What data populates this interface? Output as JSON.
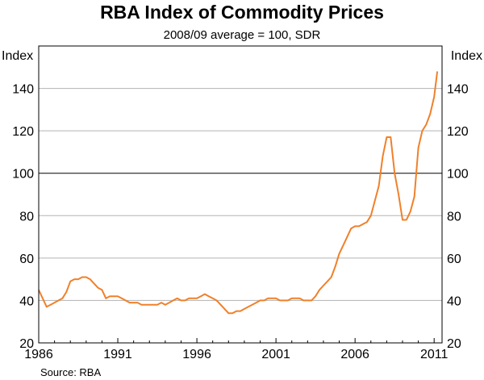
{
  "chart_data": {
    "type": "line",
    "title": "RBA Index of Commodity Prices",
    "subtitle": "2008/09 average = 100, SDR",
    "ylabel_left": "Index",
    "ylabel_right": "Index",
    "source": "Source: RBA",
    "xlim": [
      1986.0,
      2011.5
    ],
    "ylim": [
      20,
      160
    ],
    "yticks": [
      20,
      40,
      60,
      80,
      100,
      120,
      140
    ],
    "xticks": [
      1986,
      1991,
      1996,
      2001,
      2006,
      2011
    ],
    "xtick_labels": [
      "1986",
      "1991",
      "1996",
      "2001",
      "2006",
      "2011"
    ],
    "reference_line": 100,
    "grid": true,
    "line_color": "#f0802a",
    "series": [
      {
        "x": [
          1986.0,
          1986.25,
          1986.5,
          1986.75,
          1987.0,
          1987.25,
          1987.5,
          1987.75,
          1988.0,
          1988.25,
          1988.5,
          1988.75,
          1989.0,
          1989.25,
          1989.5,
          1989.75,
          1990.0,
          1990.25,
          1990.5,
          1990.75,
          1991.0,
          1991.25,
          1991.5,
          1991.75,
          1992.0,
          1992.25,
          1992.5,
          1992.75,
          1993.0,
          1993.25,
          1993.5,
          1993.75,
          1994.0,
          1994.25,
          1994.5,
          1994.75,
          1995.0,
          1995.25,
          1995.5,
          1995.75,
          1996.0,
          1996.25,
          1996.5,
          1996.75,
          1997.0,
          1997.25,
          1997.5,
          1997.75,
          1998.0,
          1998.25,
          1998.5,
          1998.75,
          1999.0,
          1999.25,
          1999.5,
          1999.75,
          2000.0,
          2000.25,
          2000.5,
          2000.75,
          2001.0,
          2001.25,
          2001.5,
          2001.75,
          2002.0,
          2002.25,
          2002.5,
          2002.75,
          2003.0,
          2003.25,
          2003.5,
          2003.75,
          2004.0,
          2004.25,
          2004.5,
          2004.75,
          2005.0,
          2005.25,
          2005.5,
          2005.75,
          2006.0,
          2006.25,
          2006.5,
          2006.75,
          2007.0,
          2007.25,
          2007.5,
          2007.75,
          2008.0,
          2008.25,
          2008.5,
          2008.75,
          2009.0,
          2009.25,
          2009.5,
          2009.75,
          2010.0,
          2010.25,
          2010.5,
          2010.75,
          2011.0,
          2011.2
        ],
        "y": [
          45,
          41,
          37,
          38,
          39,
          40,
          41,
          44,
          49,
          50,
          50,
          51,
          51,
          50,
          48,
          46,
          45,
          41,
          42,
          42,
          42,
          41,
          40,
          39,
          39,
          39,
          38,
          38,
          38,
          38,
          38,
          39,
          38,
          39,
          40,
          41,
          40,
          40,
          41,
          41,
          41,
          42,
          43,
          42,
          41,
          40,
          38,
          36,
          34,
          34,
          35,
          35,
          36,
          37,
          38,
          39,
          40,
          40,
          41,
          41,
          41,
          40,
          40,
          40,
          41,
          41,
          41,
          40,
          40,
          40,
          42,
          45,
          47,
          49,
          51,
          56,
          62,
          66,
          70,
          74,
          75,
          75,
          76,
          77,
          80,
          87,
          94,
          108,
          117,
          117,
          100,
          90,
          78,
          78,
          82,
          89,
          112,
          120,
          123,
          128,
          136,
          148
        ]
      }
    ]
  }
}
